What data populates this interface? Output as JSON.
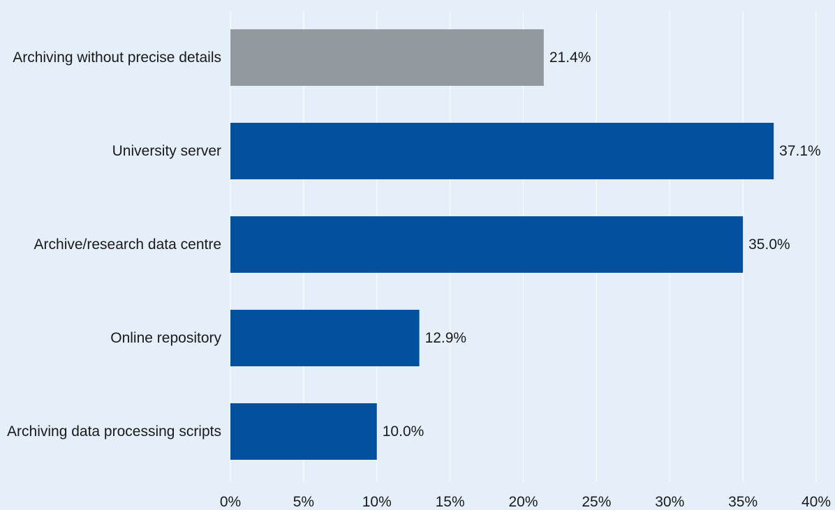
{
  "chart_data": {
    "type": "bar",
    "orientation": "horizontal",
    "categories": [
      "Archiving without precise details",
      "University server",
      "Archive/research data centre",
      "Online repository",
      "Archiving data processing scripts"
    ],
    "values": [
      21.4,
      37.1,
      35.0,
      12.9,
      10.0
    ],
    "value_labels": [
      "21.4%",
      "37.1%",
      "35.0%",
      "12.9%",
      "10.0%"
    ],
    "bar_colors": [
      "#939a9f",
      "#00509e",
      "#00509e",
      "#00509e",
      "#00509e"
    ],
    "xlim": [
      0,
      40
    ],
    "x_ticks": [
      0,
      5,
      10,
      15,
      20,
      25,
      30,
      35,
      40
    ],
    "x_tick_labels": [
      "0%",
      "5%",
      "10%",
      "15%",
      "20%",
      "25%",
      "30%",
      "35%",
      "40%"
    ],
    "title": "",
    "xlabel": "",
    "ylabel": "",
    "grid": "vertical",
    "legend": "none",
    "colors": {
      "background": "#e5eff9",
      "gridline": "#ffffff",
      "text": "#1a1a1a"
    }
  }
}
